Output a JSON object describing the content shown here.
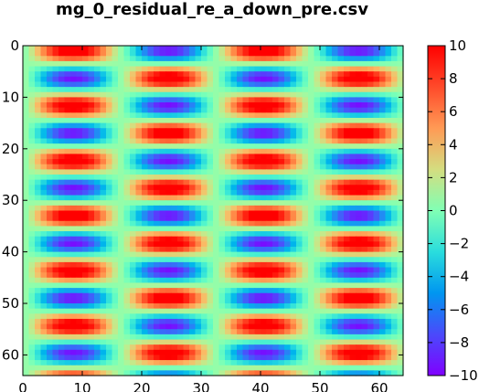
{
  "chart_data": {
    "type": "heatmap",
    "title": "mg_0_residual_re_a_down_pre.csv",
    "xlabel": "",
    "ylabel": "",
    "grid_size": [
      64,
      64
    ],
    "xlim": [
      0,
      64
    ],
    "ylim": [
      64,
      0
    ],
    "x_ticks": [
      0,
      10,
      20,
      30,
      40,
      50,
      60
    ],
    "y_ticks": [
      0,
      10,
      20,
      30,
      40,
      50,
      60
    ],
    "colormap": "rainbow",
    "value_range": [
      -10,
      10
    ],
    "colorbar_ticks": [
      10,
      8,
      6,
      4,
      2,
      0,
      -2,
      -4,
      -6,
      -8,
      -10
    ],
    "colorbar_tick_labels": [
      "10",
      "8",
      "6",
      "4",
      "2",
      "0",
      "−2",
      "−4",
      "−6",
      "−8",
      "−10"
    ],
    "pattern": {
      "description_values": "value(x,y) = amplitude * cos(2*pi*x/x_period) * cos(2*pi*y/y_period) + offset",
      "amplitude": 10.5,
      "x_period": 32,
      "y_period": 10.67,
      "x_phase": 8,
      "y_phase": 0.5,
      "offset": 0.8
    }
  }
}
